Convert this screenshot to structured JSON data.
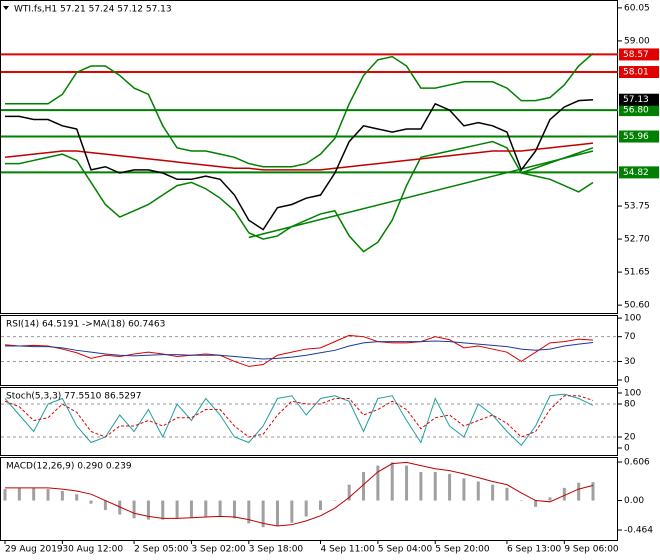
{
  "chart_data": [
    {
      "type": "line",
      "title": "WTI.fs,H1  57.21 57.24 57.12 57.13",
      "xlim": [
        0,
        41
      ],
      "xticks": [
        {
          "value": 0,
          "label": "29 Aug 2019"
        },
        {
          "value": 4,
          "label": "30 Aug 12:00"
        },
        {
          "value": 9,
          "label": "2 Sep 05:00"
        },
        {
          "value": 13,
          "label": "3 Sep 02:00"
        },
        {
          "value": 17,
          "label": "3 Sep 18:00"
        },
        {
          "value": 22,
          "label": "4 Sep 11:00"
        },
        {
          "value": 26,
          "label": "5 Sep 04:00"
        },
        {
          "value": 30,
          "label": "5 Sep 20:00"
        },
        {
          "value": 35,
          "label": "6 Sep 13:00"
        },
        {
          "value": 39,
          "label": "9 Sep 06:00"
        }
      ],
      "ylim": [
        50.35,
        60.3
      ],
      "yticks": [
        60.05,
        {
          "value": 59,
          "label": "59.00"
        },
        {
          "value": 53.75,
          "label": "53.75"
        },
        {
          "value": 52.7,
          "label": "52.70"
        },
        51.65,
        {
          "value": 50.6,
          "label": "50.60"
        }
      ],
      "series": [
        {
          "color": "#008000",
          "values": [
            57.0,
            57.0,
            57.0,
            57.0,
            57.3,
            58.0,
            58.2,
            58.2,
            57.9,
            57.5,
            57.3,
            56.3,
            55.6,
            55.5,
            55.5,
            55.4,
            55.3,
            55.1,
            55.0,
            55.0,
            55.0,
            55.1,
            55.4,
            55.9,
            57.0,
            57.9,
            58.4,
            58.5,
            58.2,
            57.5,
            57.5,
            57.6,
            57.7,
            57.7,
            57.7,
            57.5,
            57.1,
            57.1,
            57.2,
            57.6,
            58.2,
            58.6
          ]
        },
        {
          "color": "#008000",
          "values": [
            55.1,
            55.1,
            55.2,
            55.3,
            55.4,
            55.2,
            54.5,
            53.8,
            53.4,
            53.6,
            53.8,
            54.1,
            54.4,
            54.5,
            54.3,
            54.0,
            53.6,
            52.9,
            52.7,
            52.8,
            53.1,
            53.3,
            53.5,
            53.6,
            52.8,
            52.3,
            52.6,
            53.3,
            54.4,
            55.3,
            55.4,
            55.5,
            55.6,
            55.7,
            55.8,
            55.6,
            54.8,
            54.7,
            54.6,
            54.4,
            54.2,
            54.5
          ]
        },
        {
          "color": "#c00000",
          "values": [
            55.3,
            55.35,
            55.4,
            55.45,
            55.5,
            55.5,
            55.45,
            55.4,
            55.35,
            55.3,
            55.25,
            55.2,
            55.15,
            55.1,
            55.05,
            55.0,
            54.95,
            54.95,
            54.9,
            54.9,
            54.9,
            54.9,
            54.9,
            54.95,
            55.0,
            55.05,
            55.1,
            55.15,
            55.2,
            55.25,
            55.3,
            55.35,
            55.4,
            55.45,
            55.5,
            55.5,
            55.5,
            55.55,
            55.6,
            55.65,
            55.7,
            55.75
          ]
        },
        {
          "color": "#000000",
          "values": [
            56.6,
            56.6,
            56.5,
            56.5,
            56.3,
            56.2,
            54.9,
            55.0,
            54.8,
            54.9,
            54.9,
            54.8,
            54.6,
            54.6,
            54.7,
            54.6,
            54.1,
            53.3,
            53.0,
            53.7,
            53.8,
            54.0,
            54.1,
            54.8,
            55.8,
            56.3,
            56.2,
            56.1,
            56.2,
            56.2,
            57.0,
            56.8,
            56.3,
            56.4,
            56.3,
            56.1,
            54.9,
            55.5,
            56.5,
            56.9,
            57.1,
            57.13
          ]
        }
      ],
      "trendlines": [
        {
          "color": "#008000",
          "x": [
            17,
            41
          ],
          "values": [
            52.75,
            55.5
          ]
        },
        {
          "color": "#008000",
          "x": [
            36,
            41
          ],
          "values": [
            54.8,
            55.6
          ]
        }
      ],
      "levels": [
        {
          "value": 58.57,
          "color": "#e00000"
        },
        {
          "value": 58.01,
          "color": "#e00000"
        },
        {
          "value": 56.8,
          "label": "56.80",
          "color": "#008000"
        },
        {
          "value": 55.96,
          "color": "#008000"
        },
        {
          "value": 54.82,
          "color": "#008000"
        }
      ],
      "last_price": 57.13
    },
    {
      "type": "line",
      "title": "RSI(14) 64.5191  ->MA(18) 60.7463",
      "ylim": [
        -8,
        105
      ],
      "yticks": [
        100,
        70,
        30,
        0
      ],
      "levels": [
        {
          "value": 70
        },
        {
          "value": 30
        }
      ],
      "series": [
        {
          "color": "#e00000",
          "values": [
            57,
            55,
            56,
            55,
            50,
            44,
            35,
            40,
            38,
            42,
            45,
            42,
            38,
            40,
            42,
            40,
            30,
            22,
            25,
            40,
            45,
            50,
            52,
            62,
            72,
            70,
            62,
            60,
            60,
            62,
            70,
            65,
            52,
            55,
            50,
            45,
            30,
            45,
            60,
            62,
            66,
            64.5
          ]
        },
        {
          "color": "#1a3a9a",
          "values": [
            55,
            55,
            54,
            54,
            52,
            48,
            45,
            42,
            40,
            39,
            40,
            41,
            41,
            40,
            40,
            40,
            38,
            36,
            34,
            35,
            37,
            40,
            44,
            48,
            55,
            60,
            62,
            62,
            62,
            62,
            63,
            62,
            60,
            58,
            56,
            54,
            50,
            48,
            50,
            55,
            58,
            60.7
          ]
        }
      ]
    },
    {
      "type": "line",
      "title": "Stoch(5,3,3) 77.5510 86.5297",
      "ylim": [
        -12.7,
        110.9
      ],
      "yticks": [
        100,
        80,
        20,
        0
      ],
      "levels": [
        {
          "value": 80
        },
        {
          "value": 20
        }
      ],
      "series": [
        {
          "color": "#20a0a0",
          "values": [
            90,
            60,
            30,
            80,
            90,
            40,
            10,
            20,
            60,
            30,
            70,
            20,
            80,
            50,
            90,
            60,
            20,
            10,
            40,
            90,
            95,
            60,
            90,
            95,
            85,
            30,
            90,
            95,
            50,
            10,
            90,
            40,
            20,
            80,
            60,
            30,
            5,
            40,
            95,
            98,
            90,
            77.6
          ]
        },
        {
          "color": "#e00000",
          "dashed": true,
          "values": [
            85,
            75,
            50,
            55,
            80,
            65,
            30,
            20,
            40,
            40,
            50,
            40,
            55,
            55,
            70,
            70,
            40,
            20,
            25,
            60,
            85,
            80,
            80,
            90,
            90,
            60,
            70,
            85,
            70,
            35,
            55,
            60,
            40,
            50,
            60,
            45,
            20,
            30,
            70,
            95,
            95,
            86.5
          ]
        }
      ]
    },
    {
      "type": "macd",
      "title": "MACD(12,26,9) 0.290 0.239",
      "ylim": [
        -0.621,
        0.685
      ],
      "yticks": [
        0.606,
        {
          "value": 0,
          "label": "0.00"
        },
        -0.464
      ],
      "series": [
        {
          "color": "#a0a0a0",
          "kind": "bar",
          "values": [
            0.18,
            0.2,
            0.2,
            0.18,
            0.15,
            0.1,
            -0.05,
            -0.15,
            -0.22,
            -0.28,
            -0.3,
            -0.3,
            -0.28,
            -0.27,
            -0.25,
            -0.24,
            -0.28,
            -0.36,
            -0.42,
            -0.4,
            -0.35,
            -0.25,
            -0.15,
            0.0,
            0.25,
            0.45,
            0.55,
            0.6,
            0.55,
            0.45,
            0.45,
            0.42,
            0.35,
            0.3,
            0.25,
            0.2,
            0.0,
            -0.1,
            0.05,
            0.2,
            0.28,
            0.29
          ]
        },
        {
          "color": "#c00000",
          "values": [
            0.2,
            0.2,
            0.2,
            0.2,
            0.18,
            0.15,
            0.1,
            0.0,
            -0.1,
            -0.2,
            -0.25,
            -0.28,
            -0.28,
            -0.27,
            -0.26,
            -0.25,
            -0.26,
            -0.3,
            -0.36,
            -0.4,
            -0.38,
            -0.32,
            -0.24,
            -0.12,
            0.05,
            0.25,
            0.45,
            0.58,
            0.6,
            0.55,
            0.5,
            0.47,
            0.42,
            0.36,
            0.3,
            0.25,
            0.12,
            0.0,
            -0.02,
            0.08,
            0.18,
            0.239
          ]
        }
      ]
    }
  ]
}
